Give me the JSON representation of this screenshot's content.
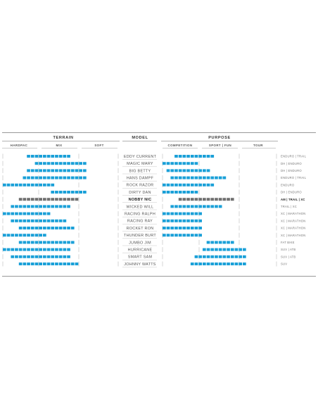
{
  "chart_data": {
    "type": "table",
    "headers": {
      "terrain": "TERRAIN",
      "model": "MODEL",
      "purpose": "PURPOSE"
    },
    "terrain_scale": [
      "HARDPAC",
      "MIX",
      "SOFT"
    ],
    "purpose_scale": [
      "COMPETITION",
      "SPORT | FUN",
      "TOUR"
    ],
    "highlight_model": "NOBBY NIC",
    "colors": {
      "bar": "#1aa0d8",
      "highlight_bar": "#707070",
      "rule": "#999999",
      "tick": "#bbbbbb"
    },
    "rows": [
      {
        "model": "EDDY CURRENT",
        "use": "ENDURO | TRAIL",
        "terrain": [
          6,
          16
        ],
        "purpose": [
          3,
          12
        ]
      },
      {
        "model": "MAGIC MARY",
        "use": "DH | ENDURO",
        "terrain": [
          8,
          20
        ],
        "purpose": [
          0,
          8
        ]
      },
      {
        "model": "BIG BETTY",
        "use": "DH | ENDURO",
        "terrain": [
          6,
          20
        ],
        "purpose": [
          1,
          11
        ]
      },
      {
        "model": "HANS DAMPF",
        "use": "ENDURO | TRAIL",
        "terrain": [
          5,
          20
        ],
        "purpose": [
          2,
          15
        ]
      },
      {
        "model": "ROCK RAZOR",
        "use": "ENDURO",
        "terrain": [
          0,
          12
        ],
        "purpose": [
          0,
          12
        ]
      },
      {
        "model": "DIRTY DAN",
        "use": "DH | ENDURO",
        "terrain": [
          12,
          20
        ],
        "purpose": [
          0,
          8
        ]
      },
      {
        "model": "NOBBY NIC",
        "use": "AM | TRAIL | XC",
        "terrain": [
          4,
          18
        ],
        "purpose": [
          4,
          17
        ]
      },
      {
        "model": "WICKED WILL",
        "use": "TRAIL | XC",
        "terrain": [
          2,
          16
        ],
        "purpose": [
          2,
          14
        ]
      },
      {
        "model": "RACING RALPH",
        "use": "XC | MARATHON",
        "terrain": [
          0,
          11
        ],
        "purpose": [
          0,
          9
        ]
      },
      {
        "model": "RACING RAY",
        "use": "XC | MARATHON",
        "terrain": [
          2,
          15
        ],
        "purpose": [
          0,
          9
        ]
      },
      {
        "model": "ROCKET RON",
        "use": "XC | MARATHON",
        "terrain": [
          4,
          17
        ],
        "purpose": [
          0,
          9
        ]
      },
      {
        "model": "THUNDER BURT",
        "use": "XC | MARATHON",
        "terrain": [
          0,
          10
        ],
        "purpose": [
          0,
          9
        ]
      },
      {
        "model": "JUMBO JIM",
        "use": "FAT BIKE",
        "terrain": [
          4,
          17
        ],
        "purpose": [
          11,
          17
        ]
      },
      {
        "model": "HURRICANE",
        "use": "SUV | ATB",
        "terrain": [
          0,
          16
        ],
        "purpose": [
          10,
          20
        ]
      },
      {
        "model": "SMART SAM",
        "use": "SUV | ATB",
        "terrain": [
          2,
          16
        ],
        "purpose": [
          8,
          20
        ]
      },
      {
        "model": "JOHNNY WATTS",
        "use": "SUV",
        "terrain": [
          4,
          18
        ],
        "purpose": [
          7,
          20
        ]
      }
    ]
  }
}
